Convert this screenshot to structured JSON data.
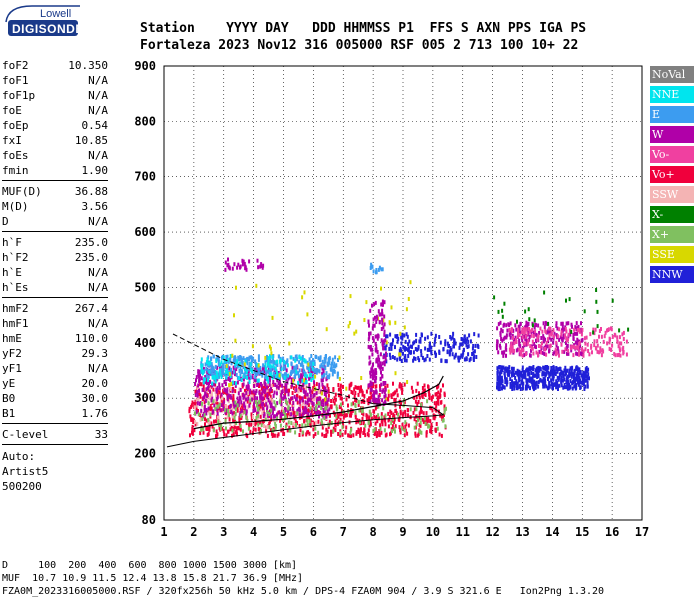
{
  "logo": {
    "line1": "Lowell",
    "line2": "DIGISONDE"
  },
  "header": {
    "row1": "Station    YYYY DAY   DDD HHMMSS P1  FFS S AXN PPS IGA PS",
    "row2": "Fortaleza 2023 Nov12 316 005000 RSF 005 2 713 100 10+ 22"
  },
  "params": {
    "group1": [
      {
        "name": "foF2",
        "value": "10.350"
      },
      {
        "name": "foF1",
        "value": "N/A"
      },
      {
        "name": "foF1p",
        "value": "N/A"
      },
      {
        "name": "foE",
        "value": "N/A"
      },
      {
        "name": "foEp",
        "value": "0.54"
      },
      {
        "name": "fxI",
        "value": "10.85"
      },
      {
        "name": "foEs",
        "value": "N/A"
      },
      {
        "name": "fmin",
        "value": "1.90"
      }
    ],
    "group2": [
      {
        "name": "MUF(D)",
        "value": "36.88"
      },
      {
        "name": "M(D)",
        "value": "3.56"
      },
      {
        "name": "D",
        "value": "N/A"
      }
    ],
    "group3": [
      {
        "name": "h`F",
        "value": "235.0"
      },
      {
        "name": "h`F2",
        "value": "235.0"
      },
      {
        "name": "h`E",
        "value": "N/A"
      },
      {
        "name": "h`Es",
        "value": "N/A"
      }
    ],
    "group4": [
      {
        "name": "hmF2",
        "value": "267.4"
      },
      {
        "name": "hmF1",
        "value": "N/A"
      },
      {
        "name": "hmE",
        "value": "110.0"
      },
      {
        "name": "yF2",
        "value": "29.3"
      },
      {
        "name": "yF1",
        "value": "N/A"
      },
      {
        "name": "yE",
        "value": "20.0"
      },
      {
        "name": "B0",
        "value": "30.0"
      },
      {
        "name": "B1",
        "value": "1.76"
      }
    ],
    "group5": [
      {
        "name": "C-level",
        "value": "33"
      }
    ],
    "auto": [
      "Auto:",
      "Artist5",
      "500200"
    ]
  },
  "legend": [
    {
      "label": "NoVal",
      "color": "#808080"
    },
    {
      "label": "NNE",
      "color": "#00e5ee"
    },
    {
      "label": "E",
      "color": "#3c9cf0"
    },
    {
      "label": "W",
      "color": "#b000a8"
    },
    {
      "label": "Vo-",
      "color": "#f040a0"
    },
    {
      "label": "Vo+",
      "color": "#f0003c"
    },
    {
      "label": "SSW",
      "color": "#f4b4b4"
    },
    {
      "label": "X-",
      "color": "#008000"
    },
    {
      "label": "X+",
      "color": "#80c060"
    },
    {
      "label": "SSE",
      "color": "#d8d800"
    },
    {
      "label": "NNW",
      "color": "#2020d8"
    }
  ],
  "chart_data": {
    "type": "scatter",
    "xlim": [
      1,
      17
    ],
    "ylim": [
      80,
      900
    ],
    "x_ticks": [
      "1",
      "2",
      "3",
      "4",
      "5",
      "6",
      "7",
      "8",
      "9",
      "10",
      "11",
      "12",
      "13",
      "14",
      "15",
      "16",
      "17"
    ],
    "y_ticks": [
      "80",
      "200",
      "300",
      "400",
      "500",
      "600",
      "700",
      "800",
      "900"
    ],
    "grid": true,
    "trace_F": [
      [
        2.0,
        245
      ],
      [
        3.0,
        255
      ],
      [
        4.0,
        258
      ],
      [
        5.0,
        262
      ],
      [
        6.0,
        268
      ],
      [
        7.0,
        275
      ],
      [
        8.0,
        285
      ],
      [
        9.0,
        295
      ],
      [
        9.7,
        310
      ],
      [
        10.2,
        325
      ],
      [
        10.35,
        340
      ]
    ],
    "profile": [
      [
        1.1,
        212
      ],
      [
        2,
        222
      ],
      [
        3,
        229
      ],
      [
        4,
        236
      ],
      [
        5,
        243
      ],
      [
        6,
        250
      ],
      [
        7,
        256
      ],
      [
        8,
        261
      ],
      [
        9,
        265
      ],
      [
        10,
        268
      ],
      [
        10.35,
        270
      ],
      [
        10.0,
        283
      ],
      [
        9.0,
        287
      ],
      [
        8.0,
        290
      ],
      [
        7.0,
        305
      ],
      [
        5.0,
        330
      ],
      [
        3.0,
        370
      ],
      [
        1.3,
        416
      ]
    ],
    "clusters": [
      {
        "color": "#f0003c",
        "x": [
          1.8,
          10.4
        ],
        "y": [
          235,
          330
        ],
        "n": 900
      },
      {
        "color": "#f4b4b4",
        "x": [
          2.0,
          6.5
        ],
        "y": [
          250,
          330
        ],
        "n": 150
      },
      {
        "color": "#b000a8",
        "x": [
          2.0,
          6.5
        ],
        "y": [
          270,
          360
        ],
        "n": 500
      },
      {
        "color": "#3c9cf0",
        "x": [
          2.2,
          6.8
        ],
        "y": [
          340,
          380
        ],
        "n": 350
      },
      {
        "color": "#00e5ee",
        "x": [
          2.2,
          6.0
        ],
        "y": [
          330,
          380
        ],
        "n": 120
      },
      {
        "color": "#2020d8",
        "x": [
          8.3,
          11.5
        ],
        "y": [
          370,
          420
        ],
        "n": 200
      },
      {
        "color": "#2020d8",
        "x": [
          12.1,
          15.2
        ],
        "y": [
          320,
          360
        ],
        "n": 450
      },
      {
        "color": "#b000a8",
        "x": [
          12.1,
          15.0
        ],
        "y": [
          380,
          440
        ],
        "n": 250
      },
      {
        "color": "#f040a0",
        "x": [
          12.5,
          16.5
        ],
        "y": [
          380,
          430
        ],
        "n": 200
      },
      {
        "color": "#80c060",
        "x": [
          2.0,
          10.5
        ],
        "y": [
          240,
          300
        ],
        "n": 180
      },
      {
        "color": "#d8d800",
        "x": [
          3.0,
          9.5
        ],
        "y": [
          300,
          520
        ],
        "n": 60
      },
      {
        "color": "#008000",
        "x": [
          12.0,
          17.0
        ],
        "y": [
          420,
          500
        ],
        "n": 25
      },
      {
        "color": "#b000a8",
        "x": [
          7.8,
          8.4
        ],
        "y": [
          290,
          480
        ],
        "n": 160
      },
      {
        "color": "#b000a8",
        "x": [
          3.0,
          4.3
        ],
        "y": [
          535,
          555
        ],
        "n": 30
      },
      {
        "color": "#3c9cf0",
        "x": [
          7.8,
          8.3
        ],
        "y": [
          530,
          545
        ],
        "n": 12
      }
    ]
  },
  "footer": {
    "line1": "D     100  200  400  600  800 1000 1500 3000 [km]",
    "line2": "MUF  10.7 10.9 11.5 12.4 13.8 15.8 21.7 36.9 [MHz]",
    "line3": "FZA0M_2023316005000.RSF / 320fx256h 50 kHz 5.0 km / DPS-4 FZA0M 904 / 3.9 S 321.6 E   Ion2Png 1.3.20"
  }
}
